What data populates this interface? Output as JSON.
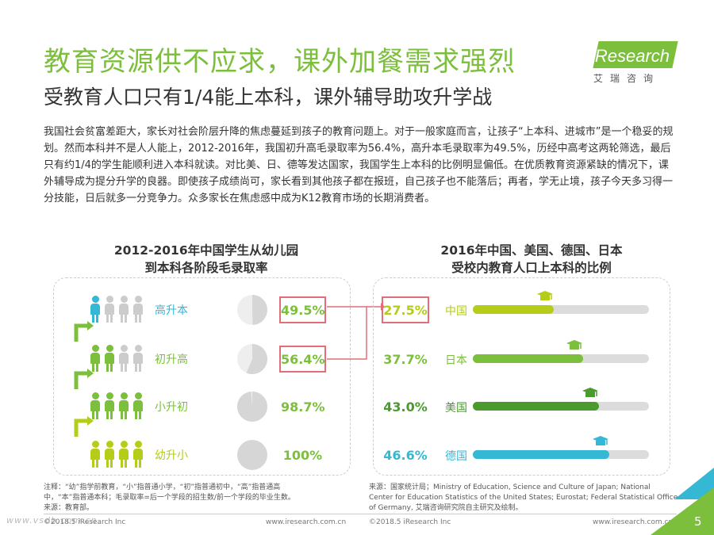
{
  "header": {
    "title": "教育资源供不应求，课外加餐需求强烈",
    "subtitle": "受教育人口只有1/4能上本科，课外辅导助攻升学战"
  },
  "logo": {
    "i": "i",
    "word": "Research",
    "cn": "艾瑞咨询"
  },
  "body_text": "我国社会贫富差距大，家长对社会阶层升降的焦虑蔓延到孩子的教育问题上。对于一般家庭而言，让孩子“上本科、进城市”是一个稳妥的规划。然而本科并不是人人能上，2012-2016年，我国初升高毛录取率为56.4%，高升本毛录取率为49.5%，历经中高考这两轮筛选，最后只有约1/4的学生能顺利进入本科就读。对比美、日、德等发达国家，我国学生上本科的比例明显偏低。在优质教育资源紧缺的情况下，课外辅导成为提分升学的良器。即使孩子成绩尚可，家长看到其他孩子都在报班，自己孩子也不能落后；再者，学无止境，孩子今天多习得一分技能，日后就多一分竞争力。众多家长在焦虑感中成为K12教育市场的长期消费者。",
  "left_chart": {
    "title_line1": "2012-2016年中国学生从幼儿园",
    "title_line2": "到本科各阶段毛录取率",
    "stages": [
      {
        "label": "高升本",
        "rate": "49.5%",
        "value": 49.5,
        "filled_people": 1,
        "color": "#35b8d4",
        "highlight": true
      },
      {
        "label": "初升高",
        "rate": "56.4%",
        "value": 56.4,
        "filled_people": 2,
        "color": "#7cbf3c",
        "highlight": true
      },
      {
        "label": "小升初",
        "rate": "98.7%",
        "value": 98.7,
        "filled_people": 4,
        "color": "#7cbf3c",
        "highlight": false
      },
      {
        "label": "幼升小",
        "rate": "100%",
        "value": 100,
        "filled_people": 4,
        "color": "#b5cc18",
        "highlight": false
      }
    ]
  },
  "right_chart": {
    "title_line1": "2016年中国、美国、德国、日本",
    "title_line2": "受校内教育人口上本科的比例",
    "countries": [
      {
        "name": "中国",
        "pct": "27.5%",
        "value": 27.5,
        "color": "#b5cc18",
        "highlight": true
      },
      {
        "name": "日本",
        "pct": "37.7%",
        "value": 37.7,
        "color": "#7cbf3c",
        "highlight": false
      },
      {
        "name": "美国",
        "pct": "43.0%",
        "value": 43.0,
        "color": "#4a9a2e",
        "highlight": false
      },
      {
        "name": "德国",
        "pct": "46.6%",
        "value": 46.6,
        "color": "#35b8d4",
        "highlight": false
      }
    ]
  },
  "notes": {
    "left_line1": "注释：“幼”指学前教育，“小”指普通小学，“初”指普通初中，“高”指普通高",
    "left_line2": "中，“本”指普通本科；毛录取率=后一个学段的招生数/前一个学段的毕业生数。",
    "left_line3": "来源：教育部。",
    "right_line1": "来源：国家统计局；Ministry of Education, Science and Culture of Japan; National",
    "right_line2": "Center for Education Statistics of the United States; Eurostat; Federal Statistical Office",
    "right_line3": "of Germany, 艾瑞咨询研究院自主研究及绘制。"
  },
  "footer": {
    "copyright_left": "©2018.5 iResearch Inc",
    "url_left": "www.iresearch.com.cn",
    "copyright_right": "©2018.5 iResearch Inc",
    "url_right": "www.iresearch.com.cn",
    "page": "5",
    "watermark": "www.vsdb.com.cn"
  },
  "colors": {
    "green": "#7cbf3c",
    "cyan": "#35b8d4",
    "highlight_border": "#e26f78",
    "grey": "#dcdcdc"
  }
}
